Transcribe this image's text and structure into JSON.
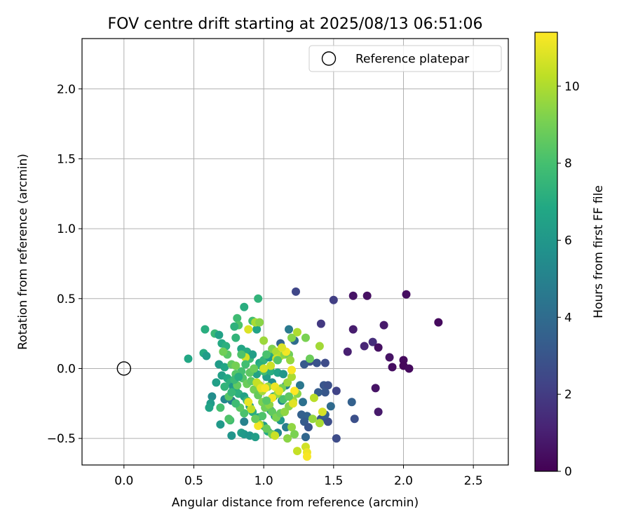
{
  "chart_data": {
    "type": "scatter",
    "title": "FOV centre drift starting at 2025/08/13 06:51:06",
    "xlabel": "Angular distance from reference (arcmin)",
    "ylabel": "Rotation from reference (arcmin)",
    "xlim": [
      -0.3,
      2.75
    ],
    "ylim": [
      -0.69,
      2.36
    ],
    "x_ticks": [
      0.0,
      0.5,
      1.0,
      1.5,
      2.0,
      2.5
    ],
    "x_tick_labels": [
      "0.0",
      "0.5",
      "1.0",
      "1.5",
      "2.0",
      "2.5"
    ],
    "y_ticks": [
      -0.5,
      0.0,
      0.5,
      1.0,
      1.5,
      2.0
    ],
    "y_tick_labels": [
      "−0.5",
      "0.0",
      "0.5",
      "1.0",
      "1.5",
      "2.0"
    ],
    "grid": true,
    "legend": {
      "position": "top-right",
      "entries": [
        {
          "label": "Reference platepar",
          "marker": "open-circle"
        }
      ]
    },
    "reference_point": {
      "x": 0.0,
      "y": 0.0
    },
    "colorbar": {
      "label": "Hours from first FF file",
      "colormap": "viridis",
      "range": [
        0,
        11.4
      ],
      "ticks": [
        0,
        2,
        4,
        6,
        8,
        10
      ],
      "tick_labels": [
        "0",
        "2",
        "4",
        "6",
        "8",
        "10"
      ]
    },
    "points": [
      [
        2.25,
        0.33,
        0.3
      ],
      [
        2.02,
        0.53,
        0.4
      ],
      [
        1.64,
        0.52,
        0.6
      ],
      [
        1.74,
        0.52,
        0.5
      ],
      [
        1.86,
        0.31,
        0.8
      ],
      [
        1.64,
        0.28,
        0.9
      ],
      [
        1.6,
        0.12,
        1.0
      ],
      [
        1.72,
        0.16,
        1.2
      ],
      [
        1.78,
        0.19,
        1.5
      ],
      [
        1.82,
        0.15,
        0.5
      ],
      [
        1.9,
        0.08,
        0.6
      ],
      [
        1.92,
        0.01,
        0.4
      ],
      [
        2.0,
        0.06,
        0.3
      ],
      [
        2.0,
        0.02,
        0.2
      ],
      [
        2.04,
        0.0,
        0.3
      ],
      [
        1.8,
        -0.14,
        0.6
      ],
      [
        1.82,
        -0.31,
        0.8
      ],
      [
        1.5,
        0.49,
        2.1
      ],
      [
        1.41,
        0.32,
        1.9
      ],
      [
        1.23,
        0.55,
        2.4
      ],
      [
        1.44,
        0.04,
        2.6
      ],
      [
        1.38,
        0.04,
        2.9
      ],
      [
        1.33,
        0.05,
        2.7
      ],
      [
        1.29,
        0.03,
        3.2
      ],
      [
        1.52,
        -0.16,
        2.3
      ],
      [
        1.43,
        -0.12,
        3.0
      ],
      [
        1.46,
        -0.12,
        2.8
      ],
      [
        1.44,
        -0.17,
        3.1
      ],
      [
        1.39,
        -0.17,
        3.3
      ],
      [
        1.63,
        -0.24,
        3.5
      ],
      [
        1.65,
        -0.36,
        2.8
      ],
      [
        1.52,
        -0.5,
        2.6
      ],
      [
        1.48,
        -0.27,
        3.9
      ],
      [
        1.46,
        -0.38,
        2.7
      ],
      [
        1.41,
        -0.36,
        3.1
      ],
      [
        1.44,
        -0.33,
        3.4
      ],
      [
        1.31,
        -0.34,
        3.6
      ],
      [
        1.29,
        -0.38,
        3.3
      ],
      [
        1.32,
        -0.42,
        3.0
      ],
      [
        1.3,
        -0.49,
        3.8
      ],
      [
        1.27,
        -0.33,
        3.5
      ],
      [
        1.28,
        -0.24,
        4.2
      ],
      [
        1.26,
        -0.12,
        4.5
      ],
      [
        1.22,
        0.2,
        4.0
      ],
      [
        1.18,
        0.28,
        4.6
      ],
      [
        1.12,
        0.18,
        3.6
      ],
      [
        1.16,
        -0.12,
        5.0
      ],
      [
        1.13,
        -0.23,
        5.4
      ],
      [
        1.16,
        -0.42,
        4.8
      ],
      [
        1.1,
        -0.46,
        5.2
      ],
      [
        1.06,
        -0.1,
        5.6
      ],
      [
        0.86,
        -0.38,
        5.0
      ],
      [
        0.77,
        -0.48,
        5.9
      ],
      [
        0.69,
        -0.4,
        6.1
      ],
      [
        0.77,
        -0.23,
        4.9
      ],
      [
        0.72,
        -0.22,
        5.3
      ],
      [
        0.63,
        -0.2,
        5.5
      ],
      [
        0.66,
        -0.1,
        6.4
      ],
      [
        0.62,
        -0.25,
        6.2
      ],
      [
        0.61,
        -0.28,
        6.6
      ],
      [
        0.46,
        0.07,
        6.8
      ],
      [
        0.57,
        0.11,
        7.0
      ],
      [
        0.59,
        0.09,
        6.3
      ],
      [
        0.58,
        0.28,
        7.1
      ],
      [
        0.65,
        0.25,
        7.6
      ],
      [
        0.68,
        0.24,
        6.5
      ],
      [
        0.7,
        0.18,
        6.9
      ],
      [
        0.73,
        0.16,
        7.2
      ],
      [
        0.8,
        0.22,
        7.4
      ],
      [
        0.86,
        0.44,
        7.1
      ],
      [
        0.81,
        0.36,
        7.8
      ],
      [
        0.82,
        0.31,
        8.2
      ],
      [
        0.79,
        0.3,
        7.3
      ],
      [
        0.95,
        0.28,
        6.6
      ],
      [
        0.96,
        0.5,
        7.4
      ],
      [
        0.92,
        0.34,
        7.9
      ],
      [
        0.84,
        0.14,
        6.7
      ],
      [
        0.88,
        0.12,
        7.0
      ],
      [
        0.9,
        0.07,
        7.7
      ],
      [
        0.92,
        0.1,
        6.4
      ],
      [
        0.97,
        0.04,
        6.9
      ],
      [
        1.0,
        0.06,
        7.5
      ],
      [
        1.04,
        0.08,
        6.1
      ],
      [
        0.98,
        0.02,
        7.2
      ],
      [
        1.06,
        0.12,
        6.8
      ],
      [
        1.08,
        0.11,
        7.0
      ],
      [
        0.95,
        -0.04,
        6.5
      ],
      [
        1.02,
        -0.06,
        6.3
      ],
      [
        1.0,
        -0.02,
        7.8
      ],
      [
        1.05,
        -0.02,
        7.1
      ],
      [
        1.1,
        -0.03,
        6.6
      ],
      [
        1.14,
        -0.04,
        6.0
      ],
      [
        0.68,
        0.03,
        6.2
      ],
      [
        0.72,
        0.01,
        6.7
      ],
      [
        0.7,
        -0.05,
        6.4
      ],
      [
        0.74,
        -0.07,
        6.9
      ],
      [
        0.76,
        -0.1,
        7.3
      ],
      [
        0.78,
        -0.13,
        6.0
      ],
      [
        0.8,
        -0.16,
        6.8
      ],
      [
        0.82,
        -0.18,
        7.2
      ],
      [
        0.86,
        -0.2,
        6.5
      ],
      [
        0.88,
        -0.23,
        7.5
      ],
      [
        0.9,
        -0.27,
        6.3
      ],
      [
        0.92,
        -0.31,
        7.1
      ],
      [
        0.96,
        -0.35,
        6.7
      ],
      [
        1.0,
        -0.41,
        6.2
      ],
      [
        1.03,
        -0.45,
        6.9
      ],
      [
        0.84,
        -0.46,
        6.4
      ],
      [
        0.86,
        -0.47,
        6.1
      ],
      [
        0.9,
        -0.48,
        5.9
      ],
      [
        0.94,
        -0.49,
        6.3
      ],
      [
        1.05,
        -0.3,
        5.8
      ],
      [
        1.08,
        -0.34,
        6.4
      ],
      [
        1.12,
        -0.37,
        6.0
      ],
      [
        1.07,
        -0.2,
        6.6
      ],
      [
        0.76,
        -0.37,
        7.9
      ],
      [
        0.75,
        -0.36,
        8.2
      ],
      [
        0.69,
        -0.28,
        8.0
      ],
      [
        0.75,
        -0.2,
        8.4
      ],
      [
        0.81,
        -0.12,
        8.6
      ],
      [
        0.85,
        -0.07,
        8.3
      ],
      [
        0.88,
        -0.11,
        8.8
      ],
      [
        0.91,
        -0.09,
        8.5
      ],
      [
        0.93,
        -0.15,
        9.0
      ],
      [
        0.96,
        -0.19,
        8.7
      ],
      [
        0.99,
        -0.24,
        9.2
      ],
      [
        1.01,
        -0.28,
        8.9
      ],
      [
        1.04,
        -0.26,
        9.4
      ],
      [
        1.06,
        -0.31,
        8.6
      ],
      [
        1.09,
        -0.35,
        9.1
      ],
      [
        1.12,
        -0.32,
        8.8
      ],
      [
        1.15,
        -0.31,
        9.5
      ],
      [
        1.18,
        -0.27,
        9.3
      ],
      [
        1.21,
        -0.23,
        9.8
      ],
      [
        1.1,
        -0.18,
        9.6
      ],
      [
        1.13,
        -0.14,
        9.0
      ],
      [
        1.17,
        -0.1,
        9.7
      ],
      [
        1.2,
        -0.06,
        9.9
      ],
      [
        1.03,
        -0.13,
        9.5
      ],
      [
        0.99,
        -0.16,
        9.8
      ],
      [
        0.97,
        -0.12,
        10.2
      ],
      [
        0.95,
        -0.1,
        10.4
      ],
      [
        1.0,
        0.2,
        9.7
      ],
      [
        1.06,
        0.14,
        9.2
      ],
      [
        1.09,
        0.12,
        9.9
      ],
      [
        1.12,
        0.09,
        10.1
      ],
      [
        1.15,
        0.1,
        9.4
      ],
      [
        1.18,
        0.1,
        8.9
      ],
      [
        1.19,
        0.06,
        9.6
      ],
      [
        1.2,
        0.22,
        9.3
      ],
      [
        1.24,
        0.26,
        10.0
      ],
      [
        1.3,
        0.22,
        9.1
      ],
      [
        1.4,
        0.16,
        9.8
      ],
      [
        1.33,
        0.07,
        8.8
      ],
      [
        1.24,
        -0.18,
        9.4
      ],
      [
        1.36,
        -0.21,
        10.2
      ],
      [
        1.35,
        -0.36,
        9.6
      ],
      [
        1.4,
        -0.39,
        9.9
      ],
      [
        1.42,
        -0.31,
        10.7
      ],
      [
        1.2,
        -0.42,
        9.5
      ],
      [
        1.22,
        -0.47,
        9.1
      ],
      [
        1.17,
        -0.5,
        9.4
      ],
      [
        1.06,
        -0.47,
        9.0
      ],
      [
        1.02,
        -0.43,
        8.7
      ],
      [
        0.97,
        -0.4,
        10.0
      ],
      [
        0.91,
        -0.29,
        10.3
      ],
      [
        0.89,
        -0.24,
        11.0
      ],
      [
        0.96,
        -0.41,
        11.2
      ],
      [
        1.08,
        -0.48,
        10.5
      ],
      [
        1.24,
        -0.59,
        10.4
      ],
      [
        1.3,
        -0.56,
        10.6
      ],
      [
        1.31,
        -0.6,
        11.1
      ],
      [
        1.31,
        -0.63,
        11.3
      ],
      [
        1.21,
        -0.25,
        10.9
      ],
      [
        1.22,
        -0.16,
        11.4
      ],
      [
        1.2,
        -0.01,
        11.3
      ],
      [
        1.16,
        0.12,
        11.2
      ],
      [
        1.13,
        0.15,
        10.8
      ],
      [
        1.09,
        0.07,
        10.6
      ],
      [
        1.05,
        0.02,
        10.5
      ],
      [
        1.0,
        0.0,
        10.7
      ],
      [
        0.98,
        -0.14,
        11.0
      ],
      [
        1.01,
        -0.14,
        11.3
      ],
      [
        1.08,
        -0.13,
        11.1
      ],
      [
        1.11,
        -0.16,
        10.9
      ],
      [
        1.06,
        -0.21,
        11.2
      ],
      [
        0.87,
        0.08,
        10.6
      ],
      [
        0.89,
        0.28,
        10.8
      ],
      [
        0.94,
        0.33,
        9.9
      ],
      [
        0.97,
        0.33,
        9.4
      ],
      [
        0.84,
        -0.02,
        8.0
      ],
      [
        0.8,
        -0.04,
        8.3
      ],
      [
        0.77,
        0.03,
        8.6
      ],
      [
        0.74,
        0.1,
        8.4
      ],
      [
        0.71,
        0.12,
        8.9
      ],
      [
        0.8,
        0.02,
        9.0
      ],
      [
        0.84,
        0.1,
        8.2
      ],
      [
        0.87,
        0.03,
        7.9
      ],
      [
        0.9,
        -0.03,
        8.5
      ],
      [
        0.93,
        0.0,
        8.8
      ],
      [
        1.02,
        0.1,
        8.1
      ],
      [
        1.1,
        0.06,
        8.3
      ],
      [
        1.14,
        -0.22,
        8.1
      ],
      [
        1.18,
        -0.2,
        8.5
      ],
      [
        1.02,
        -0.23,
        8.4
      ],
      [
        0.99,
        -0.34,
        8.2
      ],
      [
        0.94,
        -0.36,
        8.7
      ],
      [
        0.86,
        -0.32,
        8.1
      ],
      [
        0.83,
        -0.28,
        8.4
      ],
      [
        0.8,
        -0.25,
        7.8
      ],
      [
        0.77,
        -0.17,
        7.6
      ],
      [
        0.72,
        -0.13,
        7.4
      ],
      [
        0.79,
        -0.08,
        7.7
      ],
      [
        0.82,
        -0.06,
        7.1
      ]
    ]
  }
}
